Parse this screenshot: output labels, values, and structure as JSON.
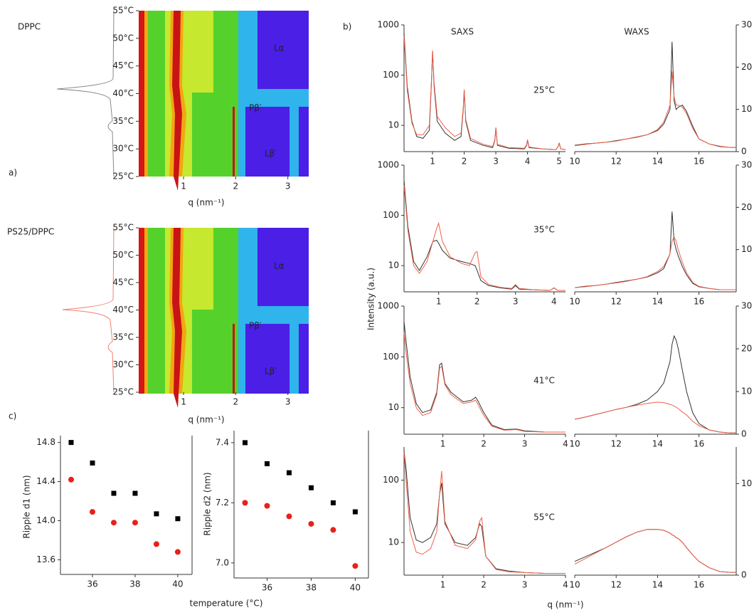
{
  "chart_data": [
    {
      "type": "contour",
      "title": "DPPC",
      "panel": "a)",
      "xlabel": "q (nm⁻¹)",
      "xlim": [
        0.14,
        3.4
      ],
      "xticks": [
        1,
        2,
        3
      ],
      "ylim": [
        25,
        55
      ],
      "yticks": [
        {
          "value": 25,
          "label": "25°C"
        },
        {
          "value": 30,
          "label": "30°C"
        },
        {
          "value": 35,
          "label": "35°C"
        },
        {
          "value": 40,
          "label": "40°C"
        },
        {
          "value": 45,
          "label": "45°C"
        },
        {
          "value": 50,
          "label": "50°C"
        },
        {
          "value": 55,
          "label": "55°C"
        }
      ],
      "annotations": [
        "Lα",
        "Pβ′",
        "Lβ′"
      ],
      "title_color": "#111111"
    },
    {
      "type": "contour",
      "title": "PS25/DPPC",
      "xlabel": "q (nm⁻¹)",
      "xlim": [
        0.14,
        3.4
      ],
      "xticks": [
        1,
        2,
        3
      ],
      "ylim": [
        25,
        55
      ],
      "yticks": [
        {
          "value": 25,
          "label": "25°C"
        },
        {
          "value": 30,
          "label": "30°C"
        },
        {
          "value": 35,
          "label": "35°C"
        },
        {
          "value": 40,
          "label": "40°C"
        },
        {
          "value": 45,
          "label": "45°C"
        },
        {
          "value": 50,
          "label": "50°C"
        },
        {
          "value": 55,
          "label": "55°C"
        }
      ],
      "annotations": [
        "Lα",
        "Pβ′",
        "Lβ′"
      ],
      "title_color": "#e8302a"
    },
    {
      "type": "scatter",
      "panel": "c)",
      "ylabel": "Ripple d1 (nm)",
      "xlabel": "temperature (°C)",
      "x": [
        35,
        36,
        37,
        38,
        39,
        40
      ],
      "xlim": [
        34.5,
        40.67
      ],
      "xticks": [
        36,
        38,
        40
      ],
      "ylim": [
        13.45,
        14.87
      ],
      "yticks": [
        13.6,
        {
          "value": 14,
          "label": "14.0"
        },
        14.4,
        14.8
      ],
      "series": [
        {
          "color": "#000000",
          "marker": "square",
          "values": [
            14.8,
            14.59,
            14.28,
            14.28,
            14.07,
            14.02
          ]
        },
        {
          "color": "#e8201a",
          "marker": "circle",
          "values": [
            14.42,
            14.09,
            13.98,
            13.98,
            13.76,
            13.68
          ]
        }
      ]
    },
    {
      "type": "scatter",
      "ylabel": "Ripple d2 (nm)",
      "x": [
        35,
        36,
        37,
        38,
        39,
        40
      ],
      "xlim": [
        34.5,
        40.6
      ],
      "xticks": [
        36,
        38,
        40
      ],
      "ylim": [
        6.95,
        7.44
      ],
      "yticks": [
        {
          "value": 7,
          "label": "7.0"
        },
        7.2,
        7.4
      ],
      "series": [
        {
          "color": "#000000",
          "marker": "square",
          "values": [
            7.4,
            7.33,
            7.3,
            7.25,
            7.2,
            7.17
          ]
        },
        {
          "color": "#e8201a",
          "marker": "circle",
          "values": [
            7.2,
            7.19,
            7.155,
            7.13,
            7.11,
            6.99
          ]
        }
      ]
    },
    {
      "type": "line",
      "panel": "b)",
      "title": "SAXS",
      "ylabel": "Intensity (a.u.)",
      "annotation": "25°C",
      "log_y": true,
      "y_side": "left",
      "xlim": [
        0.1,
        5.2
      ],
      "xticks": [
        1,
        2,
        3,
        4,
        5
      ],
      "ylim": [
        3,
        1000
      ],
      "yticks": [
        10,
        100,
        1000
      ],
      "x": [
        0.1,
        0.2,
        0.35,
        0.5,
        0.7,
        0.9,
        0.97,
        1.0,
        1.05,
        1.15,
        1.4,
        1.7,
        1.9,
        1.97,
        2.0,
        2.05,
        2.2,
        2.6,
        2.9,
        2.97,
        3.0,
        3.05,
        3.4,
        3.9,
        3.97,
        4.0,
        4.05,
        4.5,
        4.9,
        4.97,
        5.0,
        5.05,
        5.2
      ],
      "series": [
        {
          "color": "#333333",
          "values": [
            700,
            60,
            12,
            6,
            5.5,
            8,
            80,
            300,
            60,
            12,
            7,
            5,
            6,
            20,
            50,
            12,
            5,
            4,
            3.6,
            5,
            9,
            4,
            3.5,
            3.4,
            4,
            5,
            3.6,
            3.4,
            3.3,
            3.8,
            4.5,
            3.4,
            3.3
          ]
        },
        {
          "color": "#f0604a",
          "values": [
            600,
            50,
            11,
            6.5,
            6.5,
            10,
            90,
            310,
            70,
            15,
            9,
            6,
            7,
            22,
            52,
            13,
            5.5,
            4.2,
            3.8,
            5.2,
            9,
            4.2,
            3.6,
            3.5,
            4.1,
            5.2,
            3.7,
            3.4,
            3.3,
            3.8,
            4.5,
            3.4,
            3.3
          ]
        }
      ]
    },
    {
      "type": "line",
      "title": "WAXS",
      "y_side": "right",
      "xlim": [
        10,
        17.8
      ],
      "xticks": [
        10,
        12,
        14,
        16
      ],
      "ylim": [
        0,
        30
      ],
      "yticks": [
        0,
        10,
        20,
        30
      ],
      "x": [
        10,
        10.5,
        11,
        11.5,
        12,
        12.5,
        13,
        13.5,
        14,
        14.3,
        14.6,
        14.7,
        14.8,
        14.9,
        15,
        15.2,
        15.4,
        15.7,
        16,
        16.5,
        17,
        17.5,
        17.8
      ],
      "series": [
        {
          "color": "#333333",
          "values": [
            1.5,
            1.8,
            2,
            2.2,
            2.6,
            3,
            3.4,
            4,
            5,
            6.5,
            10,
            26,
            12,
            10,
            10.5,
            11,
            9.5,
            6,
            3,
            1.8,
            1.2,
            1,
            1
          ]
        },
        {
          "color": "#f0604a",
          "values": [
            1.4,
            1.7,
            2,
            2.2,
            2.5,
            3,
            3.5,
            4,
            5.2,
            7,
            11,
            19,
            13,
            11,
            11,
            10.5,
            9,
            5.5,
            3,
            1.8,
            1.3,
            1,
            1
          ]
        }
      ]
    },
    {
      "type": "line",
      "annotation": "35°C",
      "log_y": true,
      "y_side": "left",
      "xlim": [
        0.1,
        4.3
      ],
      "xticks": [
        1,
        2,
        3,
        4
      ],
      "ylim": [
        3,
        1000
      ],
      "yticks": [
        10,
        100,
        1000
      ],
      "x": [
        0.1,
        0.2,
        0.35,
        0.5,
        0.7,
        0.85,
        0.95,
        1.0,
        1.1,
        1.3,
        1.6,
        1.8,
        1.95,
        2.0,
        2.1,
        2.3,
        2.6,
        2.9,
        3.0,
        3.1,
        3.5,
        3.9,
        4.0,
        4.1,
        4.3
      ],
      "series": [
        {
          "color": "#333333",
          "values": [
            500,
            60,
            12,
            8,
            15,
            30,
            32,
            28,
            20,
            14,
            12,
            11,
            10,
            8,
            5,
            4,
            3.6,
            3.4,
            4,
            3.4,
            3.3,
            3.2,
            3.6,
            3.2,
            3.2
          ]
        },
        {
          "color": "#f0604a",
          "values": [
            400,
            50,
            10,
            7,
            12,
            30,
            55,
            70,
            30,
            15,
            11,
            10,
            18,
            19,
            6,
            4.2,
            3.7,
            3.5,
            4.2,
            3.5,
            3.3,
            3.2,
            3.6,
            3.2,
            3.2
          ]
        }
      ]
    },
    {
      "type": "line",
      "y_side": "right",
      "xlim": [
        10,
        17.8
      ],
      "xticks": [
        10,
        12,
        14,
        16
      ],
      "ylim": [
        0,
        30
      ],
      "yticks": [
        10,
        20,
        30
      ],
      "x": [
        10,
        10.5,
        11,
        11.5,
        12,
        12.5,
        13,
        13.5,
        14,
        14.3,
        14.6,
        14.7,
        14.8,
        14.9,
        15,
        15.2,
        15.4,
        15.7,
        16,
        16.5,
        17,
        17.5,
        17.8
      ],
      "series": [
        {
          "color": "#333333",
          "values": [
            1,
            1.3,
            1.5,
            1.8,
            2.2,
            2.6,
            3,
            3.5,
            4.5,
            5.5,
            9,
            19,
            12,
            10,
            8.5,
            6,
            4,
            2,
            1.2,
            0.8,
            0.5,
            0.5,
            0.5
          ]
        },
        {
          "color": "#f0604a",
          "values": [
            1,
            1.2,
            1.5,
            1.8,
            2.1,
            2.5,
            3,
            3.6,
            4.8,
            6,
            9,
            12,
            13,
            12,
            10,
            7,
            4.5,
            2.2,
            1.3,
            0.8,
            0.5,
            0.5,
            0.5
          ]
        }
      ]
    },
    {
      "type": "line",
      "annotation": "41°C",
      "log_y": true,
      "y_side": "left",
      "xlim": [
        0.05,
        4
      ],
      "xticks": [
        1,
        2,
        3,
        4
      ],
      "ylim": [
        3,
        1000
      ],
      "yticks": [
        10,
        100,
        1000
      ],
      "x": [
        0.05,
        0.1,
        0.2,
        0.35,
        0.5,
        0.7,
        0.85,
        0.92,
        0.97,
        1.05,
        1.2,
        1.5,
        1.7,
        1.8,
        1.85,
        2.0,
        2.2,
        2.5,
        2.8,
        3.0,
        3.5,
        4.0
      ],
      "series": [
        {
          "color": "#333333",
          "values": [
            500,
            200,
            40,
            12,
            8,
            9,
            20,
            70,
            75,
            30,
            20,
            13,
            14,
            16,
            14,
            8,
            4.5,
            3.7,
            3.8,
            3.5,
            3.3,
            3.3
          ]
        },
        {
          "color": "#f0604a",
          "values": [
            300,
            120,
            30,
            10,
            7,
            8,
            18,
            60,
            65,
            28,
            18,
            12,
            13,
            14,
            12,
            7,
            4.3,
            3.6,
            3.7,
            3.4,
            3.3,
            3.3
          ]
        }
      ]
    },
    {
      "type": "line",
      "y_side": "right",
      "xlim": [
        10,
        17.8
      ],
      "xticks": [
        10,
        12,
        14,
        16
      ],
      "ylim": [
        0,
        30
      ],
      "yticks": [
        0,
        10,
        20,
        30
      ],
      "x": [
        10,
        10.5,
        11,
        11.5,
        12,
        12.5,
        13,
        13.5,
        14,
        14.3,
        14.6,
        14.7,
        14.8,
        14.9,
        15,
        15.2,
        15.4,
        15.7,
        16,
        16.5,
        17,
        17.5,
        17.8
      ],
      "series": [
        {
          "color": "#333333",
          "values": [
            3.5,
            4,
            4.6,
            5.2,
            5.8,
            6.3,
            7,
            8,
            10,
            12,
            17,
            21,
            23,
            22,
            20,
            15,
            10,
            5,
            2.5,
            1,
            0.5,
            0.3,
            0.3
          ]
        },
        {
          "color": "#f0604a",
          "values": [
            3.5,
            4,
            4.6,
            5.2,
            5.8,
            6.3,
            6.8,
            7.2,
            7.5,
            7.4,
            7,
            6.8,
            6.6,
            6.3,
            6,
            5.2,
            4.5,
            3,
            2,
            1,
            0.5,
            0.3,
            0.3
          ]
        }
      ]
    },
    {
      "type": "line",
      "annotation": "55°C",
      "log_y": true,
      "y_side": "left",
      "xlim": [
        0.05,
        4
      ],
      "xticks": [
        1,
        2,
        3,
        4
      ],
      "ylim": [
        3,
        340
      ],
      "yticks": [
        10,
        100
      ],
      "x": [
        0.05,
        0.1,
        0.2,
        0.35,
        0.5,
        0.7,
        0.85,
        0.92,
        0.97,
        1.05,
        1.3,
        1.6,
        1.8,
        1.9,
        1.95,
        2.05,
        2.3,
        2.6,
        3.0,
        3.5,
        4.0
      ],
      "series": [
        {
          "color": "#333333",
          "values": [
            300,
            150,
            25,
            11,
            10,
            12,
            20,
            60,
            90,
            20,
            10,
            9,
            12,
            20,
            18,
            6,
            3.8,
            3.5,
            3.3,
            3.2,
            3.2
          ]
        },
        {
          "color": "#f0604a",
          "values": [
            280,
            100,
            15,
            7,
            6.5,
            8,
            15,
            60,
            140,
            22,
            9,
            8,
            11,
            22,
            25,
            6,
            3.7,
            3.4,
            3.3,
            3.2,
            3.2
          ]
        }
      ]
    },
    {
      "type": "line",
      "y_side": "right",
      "xlabel": "q (nm⁻¹)",
      "xlim": [
        10,
        17.8
      ],
      "xticks": [
        10,
        12,
        14,
        16
      ],
      "ylim": [
        0,
        14
      ],
      "yticks": [
        0,
        10
      ],
      "x": [
        10,
        10.5,
        11,
        11.5,
        12,
        12.5,
        13,
        13.5,
        14,
        14.3,
        14.6,
        14.7,
        14.8,
        14.9,
        15,
        15.2,
        15.4,
        15.7,
        16,
        16.5,
        17,
        17.5,
        17.8
      ],
      "series": [
        {
          "color": "#333333",
          "values": [
            1.5,
            2,
            2.5,
            3,
            3.6,
            4.2,
            4.7,
            5,
            5,
            4.9,
            4.6,
            4.4,
            4.3,
            4.1,
            4,
            3.6,
            3,
            2.2,
            1.5,
            0.8,
            0.4,
            0.3,
            0.3
          ]
        },
        {
          "color": "#f0604a",
          "values": [
            1.2,
            1.8,
            2.4,
            3,
            3.6,
            4.2,
            4.7,
            5,
            5,
            4.9,
            4.6,
            4.4,
            4.3,
            4.1,
            4,
            3.6,
            3,
            2.2,
            1.5,
            0.8,
            0.4,
            0.3,
            0.3
          ]
        }
      ]
    }
  ]
}
